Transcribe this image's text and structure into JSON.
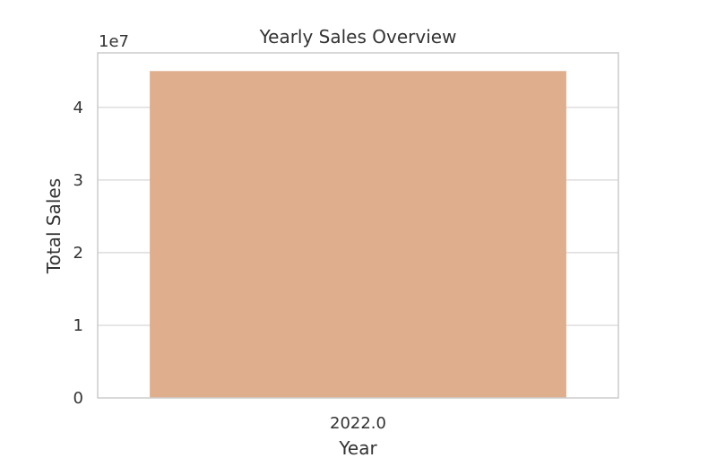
{
  "chart_data": {
    "type": "bar",
    "title": "Yearly Sales Overview",
    "xlabel": "Year",
    "ylabel": "Total Sales",
    "y_offset_label": "1e7",
    "y_multiplier": 10000000,
    "categories": [
      "2022.0"
    ],
    "values": [
      45000000
    ],
    "ylim": [
      0,
      47500000
    ],
    "yticks": [
      0,
      10000000,
      20000000,
      30000000,
      40000000
    ],
    "ytick_labels": [
      "0",
      "1",
      "2",
      "3",
      "4"
    ],
    "grid": true,
    "bar_color": "#DFAF8D"
  }
}
